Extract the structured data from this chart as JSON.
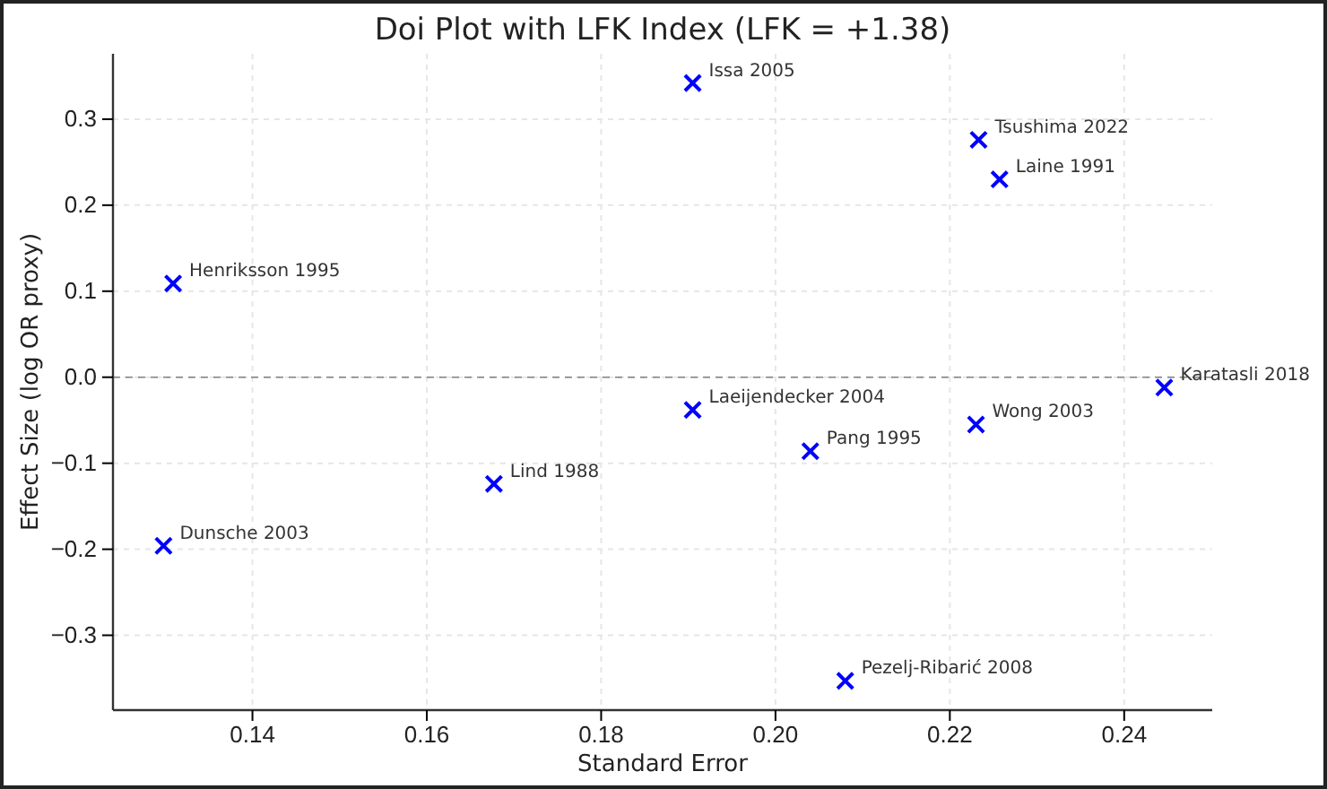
{
  "chart_data": {
    "type": "scatter",
    "title": "Doi Plot with LFK Index (LFK = +1.38)",
    "xlabel": "Standard Error",
    "ylabel": "Effect Size (log OR proxy)",
    "x": [
      0.1309,
      0.1298,
      0.1677,
      0.1905,
      0.2233,
      0.2257,
      0.1905,
      0.204,
      0.223,
      0.2446,
      0.208
    ],
    "values": [
      0.109,
      -0.196,
      -0.124,
      0.342,
      0.276,
      0.23,
      -0.038,
      -0.086,
      -0.055,
      -0.012,
      -0.353
    ],
    "color": "#0000ff",
    "marker": "cross",
    "xlim": [
      0.124,
      0.2501
    ],
    "xticks": [
      0.14,
      0.16,
      0.18,
      {
        "value": 0.2,
        "label": "0.20"
      },
      0.22,
      0.24
    ],
    "ylim": [
      -0.387,
      0.376
    ],
    "yticks": [
      {
        "value": -0.3,
        "label": "−0.3"
      },
      {
        "value": -0.2,
        "label": "−0.2"
      },
      {
        "value": -0.1,
        "label": "−0.1"
      },
      {
        "value": 0,
        "label": "0.0"
      },
      {
        "value": 0.1,
        "label": "0.1"
      },
      {
        "value": 0.2,
        "label": "0.2"
      },
      {
        "value": 0.3,
        "label": "0.3"
      }
    ],
    "grid": true,
    "ref_lines": [
      {
        "axis": "y",
        "value": 0,
        "color": "#808080",
        "line_style": "dashed"
      }
    ],
    "annotations": [
      {
        "text": "Henriksson 1995",
        "x": 0.1309,
        "y": 0.109
      },
      {
        "text": "Dunsche 2003",
        "x": 0.1298,
        "y": -0.196
      },
      {
        "text": "Lind 1988",
        "x": 0.1677,
        "y": -0.124
      },
      {
        "text": "Issa 2005",
        "x": 0.1905,
        "y": 0.342
      },
      {
        "text": "Tsushima 2022",
        "x": 0.2233,
        "y": 0.276
      },
      {
        "text": "Laine 1991",
        "x": 0.2257,
        "y": 0.23
      },
      {
        "text": "Laeijendecker 2004",
        "x": 0.1905,
        "y": -0.038
      },
      {
        "text": "Pang 1995",
        "x": 0.204,
        "y": -0.086
      },
      {
        "text": "Wong 2003",
        "x": 0.223,
        "y": -0.055
      },
      {
        "text": "Karatasli 2018",
        "x": 0.2446,
        "y": -0.012
      },
      {
        "text": "Pezelj-Ribarić 2008",
        "x": 0.208,
        "y": -0.353
      }
    ]
  }
}
